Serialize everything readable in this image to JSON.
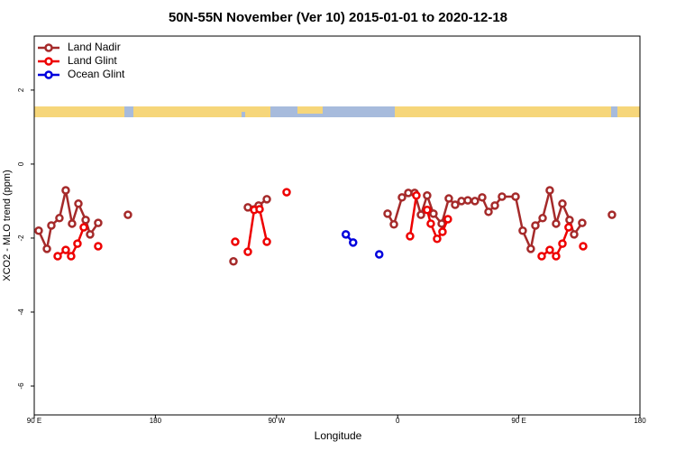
{
  "chart_data": {
    "type": "line",
    "title": "50N-55N November (Ver 10)   2015-01-01 to 2020-12-18",
    "x_label": "Longitude",
    "y_label": "XCO2 - MLO trend (ppm)",
    "xlim": [
      90,
      540
    ],
    "ylim": [
      -6.78,
      3.46
    ],
    "xticks": [
      {
        "value": 90,
        "label": "90 E"
      },
      {
        "value": 180,
        "label": "180"
      },
      {
        "value": 270,
        "label": "90 W"
      },
      {
        "value": 360,
        "label": "0"
      },
      {
        "value": 450,
        "label": "90 E"
      },
      {
        "value": 540,
        "label": "180"
      }
    ],
    "yticks": [
      -6,
      -4,
      -2,
      0,
      2
    ],
    "legend": "top-left",
    "series": [
      {
        "name": "Land Nadir",
        "color": "#a52a2a",
        "x": [
          93.3,
          99.4,
          102.7,
          108.7,
          113.4,
          118.1,
          122.8,
          128.2,
          131.5,
          137.5,
          null,
          159.6,
          null,
          238.0,
          null,
          248.7,
          256.7,
          262.8,
          null,
          352.5,
          357.2,
          363.2,
          367.9,
          372.6,
          377.3,
          381.9,
          386.6,
          392.7,
          398.0,
          402.7,
          407.4,
          412.1,
          417.4,
          422.8,
          427.5,
          432.2,
          437.5,
          447.6,
          452.9,
          458.9,
          462.3,
          467.7,
          473.0,
          477.7,
          482.4,
          487.7,
          491.1,
          497.1,
          null,
          519.2
        ],
        "values": [
          -1.8,
          -2.29,
          -1.66,
          -1.46,
          -0.71,
          -1.61,
          -1.07,
          -1.51,
          -1.9,
          -1.59,
          null,
          -1.37,
          null,
          -2.63,
          null,
          -1.17,
          -1.12,
          -0.95,
          null,
          -1.34,
          -1.63,
          -0.9,
          -0.78,
          -0.78,
          -1.37,
          -0.85,
          -1.34,
          -1.61,
          -0.93,
          -1.1,
          -1.0,
          -0.98,
          -1.0,
          -0.9,
          -1.29,
          -1.12,
          -0.88,
          -0.88,
          -1.8,
          -2.29,
          -1.66,
          -1.46,
          -0.71,
          -1.61,
          -1.07,
          -1.51,
          -1.9,
          -1.59,
          null,
          -1.37
        ]
      },
      {
        "name": "Land Glint",
        "color": "#ee0000",
        "x": [
          107.4,
          113.4,
          117.4,
          122.1,
          126.8,
          null,
          137.5,
          null,
          239.3,
          null,
          248.7,
          253.4,
          257.4,
          262.8,
          null,
          277.5,
          null,
          369.2,
          373.9,
          null,
          381.9,
          384.6,
          389.3,
          393.3,
          397.3,
          null,
          467.0,
          473.0,
          477.7,
          482.4,
          487.0,
          null,
          497.8
        ],
        "values": [
          -2.49,
          -2.32,
          -2.49,
          -2.15,
          -1.71,
          null,
          -2.22,
          null,
          -2.1,
          null,
          -2.37,
          -1.24,
          -1.22,
          -2.1,
          null,
          -0.76,
          null,
          -1.95,
          -0.85,
          null,
          -1.24,
          -1.61,
          -2.02,
          -1.83,
          -1.49,
          null,
          -2.49,
          -2.32,
          -2.49,
          -2.15,
          -1.71,
          null,
          -2.22
        ]
      },
      {
        "name": "Ocean Glint",
        "color": "#0000dd",
        "x": [
          321.5,
          326.9,
          null,
          346.3
        ],
        "values": [
          -1.9,
          -2.12,
          null,
          -2.44
        ]
      }
    ]
  }
}
